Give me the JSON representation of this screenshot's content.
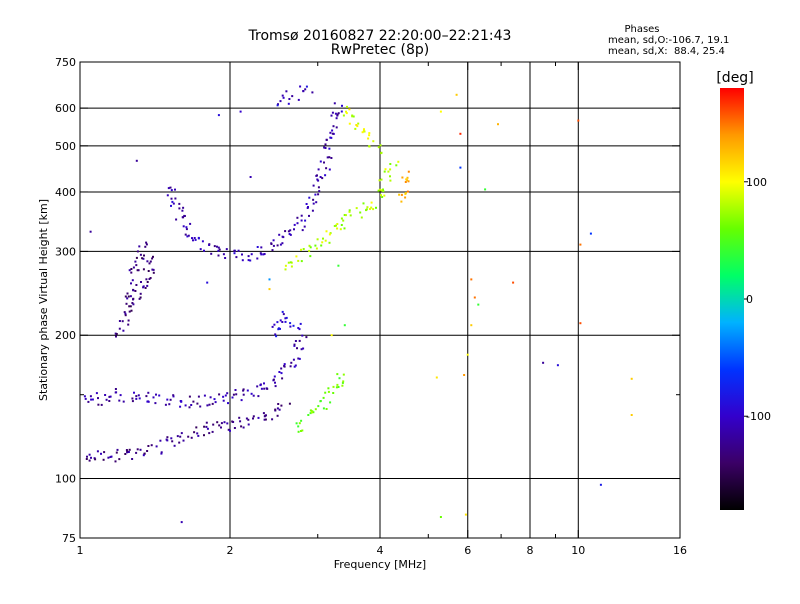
{
  "chart_data": {
    "type": "scatter",
    "title_line1": "Tromsø 20160827 22:20:00–22:21:43",
    "title_line2": "RwPretec (8p)",
    "xlabel": "Frequency [MHz]",
    "ylabel": "Stationary phase Virtual Height [km]",
    "x_scale": "log",
    "y_scale": "log",
    "xlim": [
      1,
      16
    ],
    "ylim": [
      75,
      750
    ],
    "x_ticks": [
      1,
      2,
      4,
      6,
      8,
      10,
      16
    ],
    "x_tick_labels": [
      "1",
      "2",
      "4",
      "6",
      "8",
      "10",
      "16"
    ],
    "x_gridlines": [
      2,
      4,
      6,
      8,
      10
    ],
    "x_minor": [
      3,
      5,
      7,
      9
    ],
    "y_ticks": [
      75,
      100,
      200,
      300,
      400,
      500,
      600,
      750
    ],
    "y_tick_labels": [
      "75",
      "100",
      "200",
      "300",
      "400",
      "500",
      "600",
      "750"
    ],
    "y_gridlines": [
      100,
      200,
      300,
      400,
      500,
      600
    ],
    "y_minor": [
      150
    ],
    "grid": true,
    "info": {
      "heading": "Phases",
      "line1": "mean, sd,O:-106.7, 19.1",
      "line2": "mean, sd,X:  88.4, 25.4"
    },
    "colorbar": {
      "label": "[deg]",
      "range": [
        -180,
        180
      ],
      "ticks": [
        -100,
        0,
        100
      ],
      "tick_labels": [
        "-100",
        "0",
        "100"
      ],
      "stops": [
        "#000000",
        "#3b0066",
        "#3300cc",
        "#0033ff",
        "#00b2ff",
        "#00ff66",
        "#66ff00",
        "#ffff00",
        "#ff9900",
        "#ff0000"
      ]
    },
    "traces": [
      {
        "name": "O-mode F trace",
        "phase_deg": -110,
        "points": [
          [
            1.52,
            410
          ],
          [
            1.56,
            380
          ],
          [
            1.6,
            352
          ],
          [
            1.65,
            330
          ],
          [
            1.7,
            318
          ],
          [
            1.75,
            310
          ],
          [
            1.82,
            303
          ],
          [
            1.9,
            298
          ],
          [
            2.0,
            295
          ],
          [
            2.1,
            293
          ],
          [
            2.2,
            295
          ],
          [
            2.3,
            300
          ],
          [
            2.4,
            306
          ],
          [
            2.5,
            314
          ],
          [
            2.6,
            322
          ],
          [
            2.7,
            333
          ],
          [
            2.8,
            350
          ],
          [
            2.9,
            375
          ],
          [
            3.0,
            410
          ],
          [
            3.1,
            455
          ],
          [
            3.2,
            520
          ],
          [
            3.25,
            570
          ],
          [
            3.3,
            620
          ]
        ]
      },
      {
        "name": "X-mode F trace",
        "phase_deg": 80,
        "points": [
          [
            2.6,
            278
          ],
          [
            2.7,
            285
          ],
          [
            2.8,
            292
          ],
          [
            2.9,
            300
          ],
          [
            3.0,
            310
          ],
          [
            3.1,
            320
          ],
          [
            3.2,
            332
          ],
          [
            3.35,
            345
          ],
          [
            3.5,
            355
          ],
          [
            3.65,
            365
          ],
          [
            3.8,
            375
          ],
          [
            3.95,
            385
          ],
          [
            4.1,
            420
          ],
          [
            4.3,
            460
          ]
        ]
      },
      {
        "name": "X-mode F cusp",
        "phase_deg": 130,
        "points": [
          [
            4.4,
            385
          ],
          [
            4.45,
            400
          ],
          [
            4.5,
            420
          ],
          [
            4.55,
            440
          ]
        ]
      },
      {
        "name": "O-mode E upper trace",
        "phase_deg": -115,
        "points": [
          [
            1.0,
            145
          ],
          [
            1.1,
            147
          ],
          [
            1.2,
            150
          ],
          [
            1.3,
            148
          ],
          [
            1.4,
            146
          ],
          [
            1.5,
            146
          ],
          [
            1.6,
            145
          ],
          [
            1.7,
            145
          ],
          [
            1.8,
            146
          ],
          [
            1.9,
            147
          ],
          [
            2.0,
            148
          ],
          [
            2.1,
            150
          ],
          [
            2.2,
            152
          ],
          [
            2.3,
            155
          ],
          [
            2.4,
            158
          ],
          [
            2.5,
            162
          ],
          [
            2.6,
            168
          ],
          [
            2.7,
            178
          ],
          [
            2.8,
            200
          ]
        ]
      },
      {
        "name": "O-mode E lower trace",
        "phase_deg": -125,
        "points": [
          [
            1.0,
            112
          ],
          [
            1.1,
            111
          ],
          [
            1.2,
            112
          ],
          [
            1.3,
            113
          ],
          [
            1.4,
            115
          ],
          [
            1.5,
            118
          ],
          [
            1.6,
            121
          ],
          [
            1.7,
            124
          ],
          [
            1.8,
            127
          ],
          [
            1.9,
            129
          ],
          [
            2.0,
            130
          ],
          [
            2.1,
            131
          ],
          [
            2.2,
            132
          ],
          [
            2.3,
            133
          ],
          [
            2.4,
            136
          ],
          [
            2.5,
            140
          ],
          [
            2.6,
            145
          ]
        ]
      },
      {
        "name": "O-mode low-frequency cluster",
        "phase_deg": -130,
        "points": [
          [
            1.2,
            200
          ],
          [
            1.25,
            220
          ],
          [
            1.3,
            240
          ],
          [
            1.35,
            260
          ],
          [
            1.4,
            280
          ],
          [
            1.35,
            305
          ],
          [
            1.3,
            290
          ],
          [
            1.25,
            230
          ]
        ]
      },
      {
        "name": "O-mode E cusp",
        "phase_deg": -95,
        "points": [
          [
            2.45,
            200
          ],
          [
            2.5,
            215
          ],
          [
            2.6,
            220
          ],
          [
            2.7,
            210
          ],
          [
            2.8,
            205
          ]
        ]
      },
      {
        "name": "X-mode E trace",
        "phase_deg": 60,
        "points": [
          [
            2.7,
            128
          ],
          [
            2.8,
            132
          ],
          [
            2.9,
            136
          ],
          [
            3.0,
            140
          ],
          [
            3.1,
            145
          ],
          [
            3.2,
            150
          ],
          [
            3.3,
            158
          ],
          [
            3.4,
            170
          ]
        ]
      },
      {
        "name": "upper O-mode fragment",
        "phase_deg": -100,
        "points": [
          [
            2.5,
            610
          ],
          [
            2.6,
            625
          ],
          [
            2.7,
            640
          ],
          [
            2.8,
            650
          ],
          [
            2.9,
            655
          ]
        ]
      },
      {
        "name": "X-mode upper fragment",
        "phase_deg": 90,
        "points": [
          [
            3.4,
            600
          ],
          [
            3.6,
            560
          ],
          [
            3.8,
            520
          ],
          [
            4.0,
            480
          ]
        ]
      }
    ],
    "scatter_points": [
      {
        "x": 1.6,
        "y": 81,
        "phase_deg": -110
      },
      {
        "x": 2.0,
        "y": 126,
        "phase_deg": -100
      },
      {
        "x": 5.3,
        "y": 83,
        "phase_deg": 60
      },
      {
        "x": 5.95,
        "y": 84,
        "phase_deg": 110
      },
      {
        "x": 11.1,
        "y": 97,
        "phase_deg": -80
      },
      {
        "x": 8.5,
        "y": 175,
        "phase_deg": -120
      },
      {
        "x": 9.1,
        "y": 173,
        "phase_deg": -90
      },
      {
        "x": 12.8,
        "y": 162,
        "phase_deg": 120
      },
      {
        "x": 10.1,
        "y": 212,
        "phase_deg": 160
      },
      {
        "x": 6.1,
        "y": 210,
        "phase_deg": 120
      },
      {
        "x": 6.3,
        "y": 232,
        "phase_deg": 40
      },
      {
        "x": 6.1,
        "y": 262,
        "phase_deg": 150
      },
      {
        "x": 7.4,
        "y": 258,
        "phase_deg": 160
      },
      {
        "x": 10.1,
        "y": 310,
        "phase_deg": 150
      },
      {
        "x": 10.6,
        "y": 327,
        "phase_deg": -60
      },
      {
        "x": 6.5,
        "y": 405,
        "phase_deg": 40
      },
      {
        "x": 6.9,
        "y": 555,
        "phase_deg": 130
      },
      {
        "x": 10.0,
        "y": 565,
        "phase_deg": 160
      },
      {
        "x": 5.8,
        "y": 450,
        "phase_deg": -60
      },
      {
        "x": 5.3,
        "y": 590,
        "phase_deg": 100
      },
      {
        "x": 5.7,
        "y": 640,
        "phase_deg": 120
      },
      {
        "x": 5.8,
        "y": 530,
        "phase_deg": 170
      },
      {
        "x": 12.8,
        "y": 136,
        "phase_deg": 120
      },
      {
        "x": 5.2,
        "y": 163,
        "phase_deg": 110
      },
      {
        "x": 5.9,
        "y": 165,
        "phase_deg": 140
      },
      {
        "x": 6.0,
        "y": 182,
        "phase_deg": 100
      },
      {
        "x": 6.2,
        "y": 240,
        "phase_deg": 150
      },
      {
        "x": 2.4,
        "y": 250,
        "phase_deg": 120
      },
      {
        "x": 2.4,
        "y": 262,
        "phase_deg": -30
      },
      {
        "x": 1.8,
        "y": 258,
        "phase_deg": -90
      },
      {
        "x": 3.3,
        "y": 280,
        "phase_deg": 40
      },
      {
        "x": 3.4,
        "y": 210,
        "phase_deg": 40
      },
      {
        "x": 3.2,
        "y": 200,
        "phase_deg": 100
      },
      {
        "x": 2.2,
        "y": 430,
        "phase_deg": -110
      },
      {
        "x": 1.9,
        "y": 580,
        "phase_deg": -90
      },
      {
        "x": 2.1,
        "y": 590,
        "phase_deg": -100
      },
      {
        "x": 1.05,
        "y": 330,
        "phase_deg": -120
      },
      {
        "x": 1.3,
        "y": 465,
        "phase_deg": -120
      }
    ]
  }
}
